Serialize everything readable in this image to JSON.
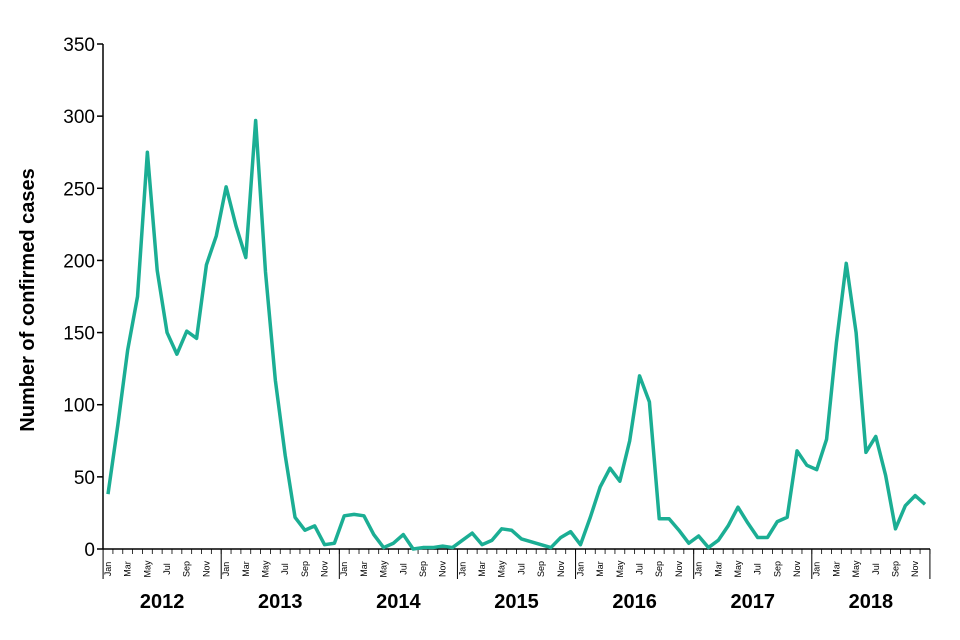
{
  "chart_data": {
    "type": "line",
    "y_label": "Number of confirmed cases",
    "color": "#1bae94",
    "categories": [
      "Jan",
      null,
      "Mar",
      null,
      "May",
      null,
      "Jul",
      null,
      "Sep",
      null,
      "Nov",
      null,
      "Jan",
      null,
      "Mar",
      null,
      "May",
      null,
      "Jul",
      null,
      "Sep",
      null,
      "Nov",
      null,
      "Jan",
      null,
      "Mar",
      null,
      "May",
      null,
      "Jul",
      null,
      "Sep",
      null,
      "Nov",
      null,
      "Jan",
      null,
      "Mar",
      null,
      "May",
      null,
      "Jul",
      null,
      "Sep",
      null,
      "Nov",
      null,
      "Jan",
      null,
      "Mar",
      null,
      "May",
      null,
      "Jul",
      null,
      "Sep",
      null,
      "Nov",
      null,
      "Jan",
      null,
      "Mar",
      null,
      "May",
      null,
      "Jul",
      null,
      "Sep",
      null,
      "Nov",
      null,
      "Jan",
      null,
      "Mar",
      null,
      "May",
      null,
      "Jul",
      null,
      "Sep",
      null,
      "Nov",
      null
    ],
    "years": [
      "2012",
      "2013",
      "2014",
      "2015",
      "2016",
      "2017",
      "2018"
    ],
    "values": [
      38,
      86,
      138,
      175,
      275,
      193,
      150,
      135,
      151,
      146,
      197,
      217,
      251,
      224,
      202,
      297,
      192,
      117,
      65,
      22,
      13,
      16,
      3,
      4,
      23,
      24,
      23,
      10,
      1,
      4,
      10,
      0,
      1,
      1,
      2,
      1,
      6,
      11,
      3,
      6,
      14,
      13,
      7,
      5,
      3,
      1,
      8,
      12,
      3,
      22,
      43,
      56,
      47,
      75,
      120,
      102,
      21,
      21,
      13,
      4,
      9,
      1,
      6,
      16,
      29,
      18,
      8,
      8,
      19,
      22,
      68,
      58,
      55,
      76,
      143,
      198,
      150,
      67,
      78,
      51,
      14,
      30,
      37,
      31
    ],
    "ylim": [
      0,
      350
    ],
    "yticks": [
      0,
      50,
      100,
      150,
      200,
      250,
      300,
      350
    ]
  }
}
